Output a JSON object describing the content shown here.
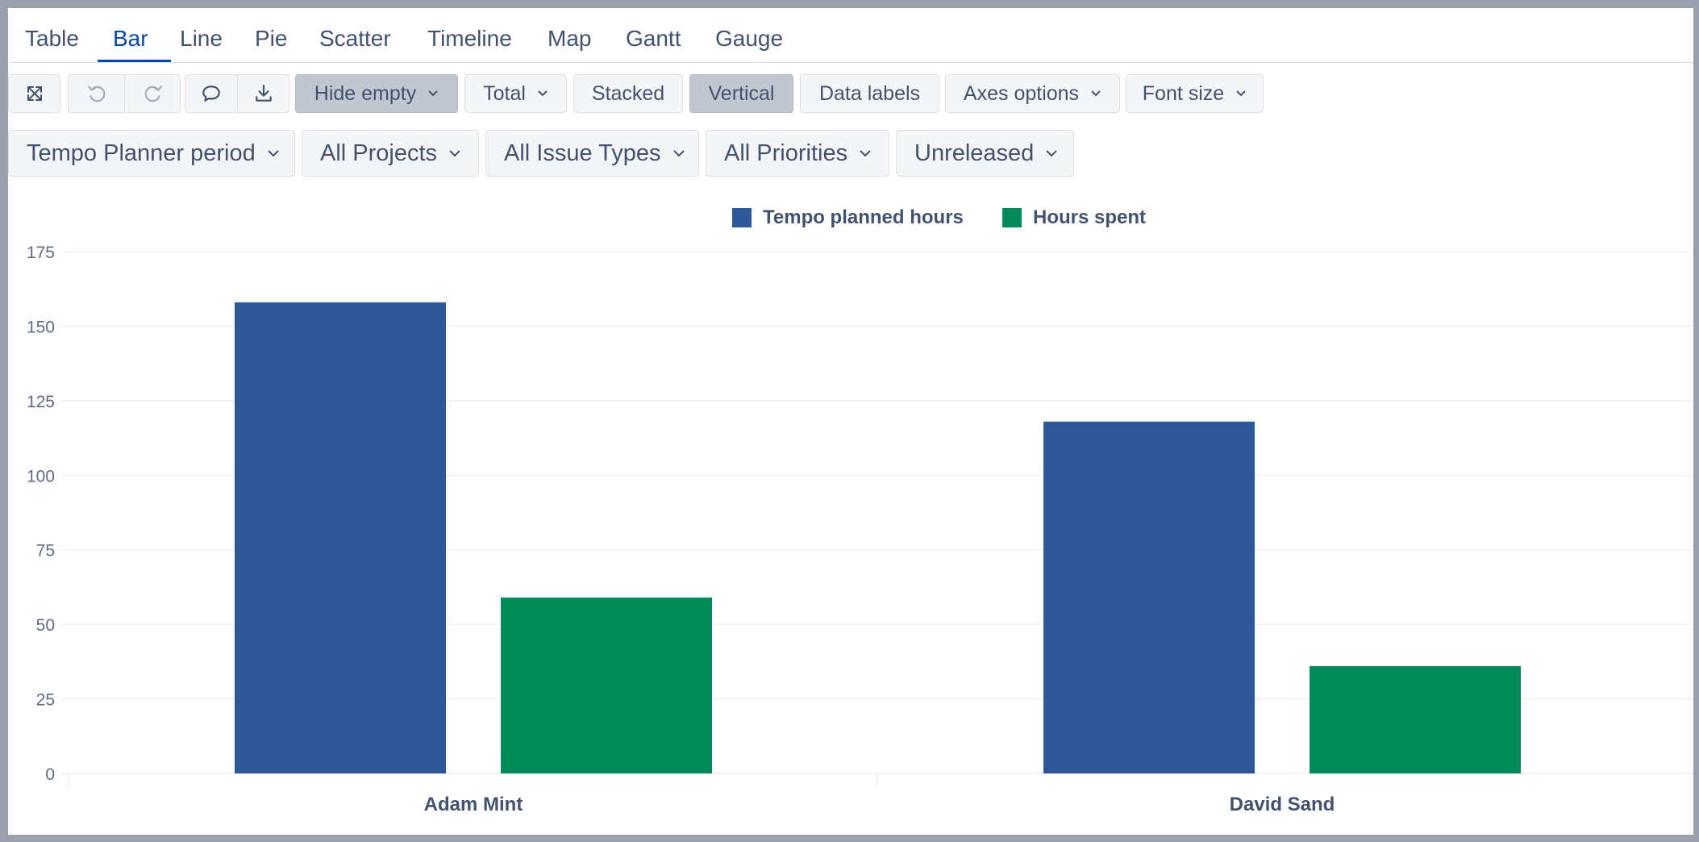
{
  "tabs": [
    {
      "label": "Table"
    },
    {
      "label": "Bar"
    },
    {
      "label": "Line"
    },
    {
      "label": "Pie"
    },
    {
      "label": "Scatter"
    },
    {
      "label": "Timeline"
    },
    {
      "label": "Map"
    },
    {
      "label": "Gantt"
    },
    {
      "label": "Gauge"
    }
  ],
  "active_tab": "Bar",
  "toolbar": {
    "fullscreen_icon": "expand-arrows-icon",
    "undo_icon": "undo-icon",
    "redo_icon": "redo-icon",
    "comment_icon": "comment-bubble-icon",
    "download_icon": "download-icon",
    "hide_empty": "Hide empty",
    "total": "Total",
    "stacked": "Stacked",
    "vertical": "Vertical",
    "data_labels": "Data labels",
    "axes_options": "Axes options",
    "font_size": "Font size"
  },
  "filters": [
    {
      "label": "Tempo Planner period"
    },
    {
      "label": "All Projects"
    },
    {
      "label": "All Issue Types"
    },
    {
      "label": "All Priorities"
    },
    {
      "label": "Unreleased"
    }
  ],
  "colors": {
    "planned": "#2f5899",
    "spent": "#008a5a",
    "active_tab": "#0747a6",
    "grid": "#ebecf0"
  },
  "chart_data": {
    "type": "bar",
    "categories": [
      "Adam Mint",
      "David Sand"
    ],
    "series": [
      {
        "name": "Tempo planned hours",
        "values": [
          158,
          118
        ]
      },
      {
        "name": "Hours spent",
        "values": [
          59,
          36
        ]
      }
    ],
    "ylim": [
      0,
      175
    ],
    "yticks": [
      0,
      25,
      50,
      75,
      100,
      125,
      150,
      175
    ],
    "ytick_labels": [
      "0",
      "25",
      "50",
      "75",
      "100",
      "125",
      "150",
      "175"
    ],
    "grid": true,
    "legend_position": "top-center"
  }
}
